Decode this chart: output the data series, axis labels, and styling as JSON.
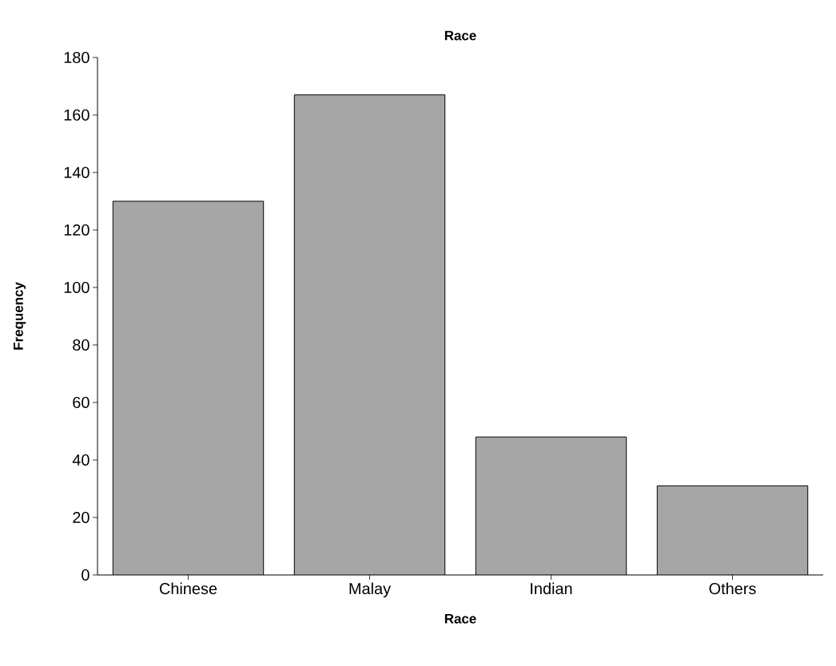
{
  "chart_data": {
    "type": "bar",
    "title": "Race",
    "xlabel": "Race",
    "ylabel": "Frequency",
    "categories": [
      "Chinese",
      "Malay",
      "Indian",
      "Others"
    ],
    "values": [
      130,
      167,
      48,
      31
    ],
    "color": "#a6a6a6",
    "ylim": [
      0,
      180
    ],
    "yticks": [
      0,
      20,
      40,
      60,
      80,
      100,
      120,
      140,
      160,
      180
    ],
    "grid": false
  }
}
